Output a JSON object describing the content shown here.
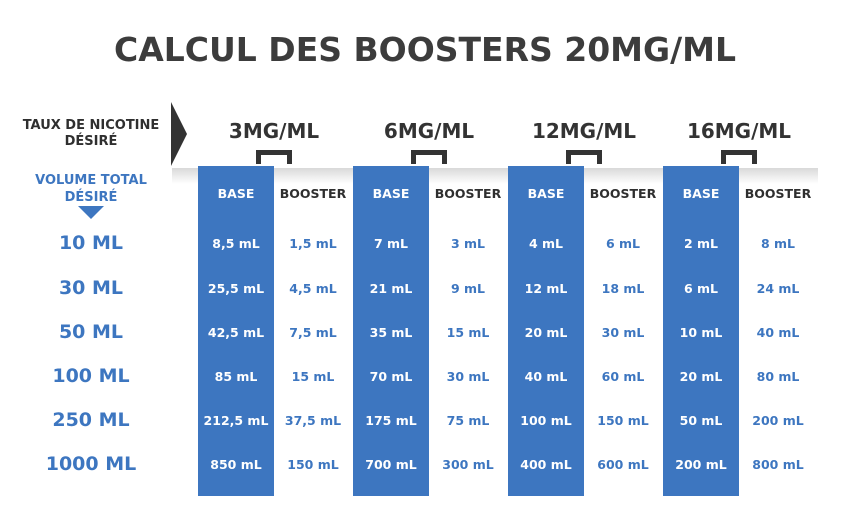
{
  "title": "CALCUL DES BOOSTERS 20MG/ML",
  "nicotine_label": [
    "TAUX DE NICOTINE",
    "DÉSIRÉ"
  ],
  "volume_label": [
    "VOLUME TOTAL",
    "DÉSIRÉ"
  ],
  "colors": {
    "blue": "#3d76c0",
    "dark": "#333333",
    "white": "#ffffff"
  },
  "icons": {
    "nicotine_arrow": "right-triangle-arrow-icon",
    "volume_arrow": "down-triangle-arrow-icon"
  },
  "concentrations": [
    "3MG/ML",
    "6MG/ML",
    "12MG/ML",
    "16MG/ML"
  ],
  "headers": {
    "base": "BASE",
    "booster": "BOOSTER"
  },
  "rows": [
    {
      "volume": "10 ML",
      "cells": [
        [
          "8,5 mL",
          "1,5 mL"
        ],
        [
          "7 mL",
          "3 mL"
        ],
        [
          "4 mL",
          "6 mL"
        ],
        [
          "2 mL",
          "8 mL"
        ]
      ]
    },
    {
      "volume": "30 ML",
      "cells": [
        [
          "25,5 mL",
          "4,5 mL"
        ],
        [
          "21 mL",
          "9 mL"
        ],
        [
          "12 mL",
          "18 mL"
        ],
        [
          "6 mL",
          "24 mL"
        ]
      ]
    },
    {
      "volume": "50 ML",
      "cells": [
        [
          "42,5 mL",
          "7,5 mL"
        ],
        [
          "35 mL",
          "15 mL"
        ],
        [
          "20 mL",
          "30 mL"
        ],
        [
          "10 mL",
          "40 mL"
        ]
      ]
    },
    {
      "volume": "100 ML",
      "cells": [
        [
          "85 mL",
          "15 mL"
        ],
        [
          "70 mL",
          "30 mL"
        ],
        [
          "40 mL",
          "60 mL"
        ],
        [
          "20 mL",
          "80 mL"
        ]
      ]
    },
    {
      "volume": "250 ML",
      "cells": [
        [
          "212,5 mL",
          "37,5 mL"
        ],
        [
          "175 mL",
          "75 mL"
        ],
        [
          "100 mL",
          "150 mL"
        ],
        [
          "50 mL",
          "200 mL"
        ]
      ]
    },
    {
      "volume": "1000 ML",
      "cells": [
        [
          "850 mL",
          "150 mL"
        ],
        [
          "700 mL",
          "300 mL"
        ],
        [
          "400 mL",
          "600 mL"
        ],
        [
          "200 mL",
          "800 mL"
        ]
      ]
    }
  ]
}
